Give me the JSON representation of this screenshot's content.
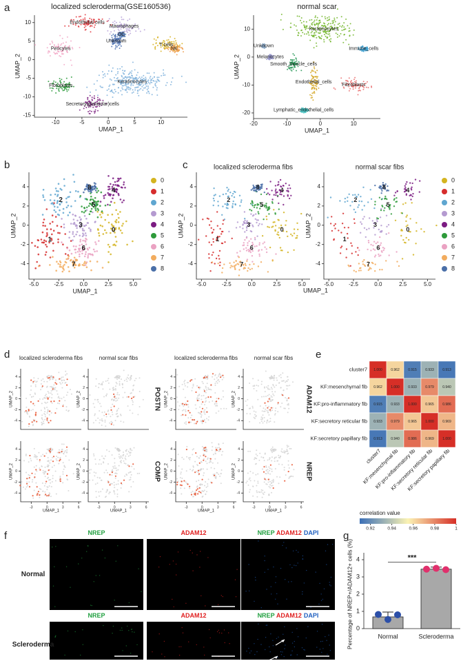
{
  "chart_data": [
    {
      "type": "umap",
      "panel": "a",
      "title": "localized scleroderma(GSE160536)",
      "xlabel": "UMAP_1",
      "ylabel": "UMAP_2",
      "xlim": [
        -14,
        15
      ],
      "ylim": [
        -15.5,
        12
      ],
      "xticks": [
        -10,
        -5,
        0,
        5,
        10
      ],
      "yticks": [
        -15,
        -10,
        -5,
        0,
        5,
        10
      ],
      "series": [
        {
          "name": "Endothelial cells",
          "color": "#e0343a"
        },
        {
          "name": "Macrophages",
          "color": "#b9a3d9"
        },
        {
          "name": "DC",
          "color": "#5a7fb8"
        },
        {
          "name": "Unknown",
          "color": "#4a6fb0"
        },
        {
          "name": "T cells",
          "color": "#d8b21e"
        },
        {
          "name": "NK",
          "color": "#f0a050"
        },
        {
          "name": "Pericytes",
          "color": "#f2a6c6"
        },
        {
          "name": "Fibroblasts",
          "color": "#2a9a3a"
        },
        {
          "name": "Keratinocytes",
          "color": "#7fb2dc"
        },
        {
          "name": "Secretory(glandular)cells",
          "color": "#7b2080"
        }
      ]
    },
    {
      "type": "umap",
      "title": "normal scar",
      "xlabel": "UMAP_1",
      "ylabel": "UMAP_2",
      "xlim": [
        -20,
        18
      ],
      "ylim": [
        -22,
        15
      ],
      "xticks": [
        -20,
        -10,
        0,
        10
      ],
      "yticks": [
        -20,
        -10,
        0,
        10
      ],
      "series": [
        {
          "name": "Keratinocytes",
          "color": "#72b52a"
        },
        {
          "name": "Unknown",
          "color": "#8aa8c8"
        },
        {
          "name": "Immune_cells",
          "color": "#3fa0d0"
        },
        {
          "name": "Melanocytes",
          "color": "#9a9ad0"
        },
        {
          "name": "Smooth_muscle_cells",
          "color": "#2a9a5a"
        },
        {
          "name": "Endothelial_cells",
          "color": "#d4a520"
        },
        {
          "name": "Fibroblasts",
          "color": "#ea7070"
        },
        {
          "name": "Lymphatic_endothelial_cells",
          "color": "#40c0c0"
        }
      ]
    },
    {
      "type": "cluster_umap",
      "panel": "b",
      "xlabel": "UMAP_1",
      "ylabel": "UMAP_2",
      "xlim": [
        -5.5,
        5.8
      ],
      "ylim": [
        -5.6,
        5.5
      ],
      "xticks": [
        {
          "value": -5,
          "label": "-5.0"
        },
        {
          "value": -2.5,
          "label": "-2.5"
        },
        {
          "value": 0,
          "label": "0.0"
        },
        {
          "value": 2.5,
          "label": "2.5"
        },
        {
          "value": 5,
          "label": "5.0"
        }
      ],
      "yticks": [
        -4,
        -2,
        0,
        2,
        4
      ],
      "series": [
        {
          "name": "0",
          "color": "#d4b420"
        },
        {
          "name": "1",
          "color": "#d62d2d"
        },
        {
          "name": "2",
          "color": "#5fa6d0"
        },
        {
          "name": "3",
          "color": "#b49ad0"
        },
        {
          "name": "4",
          "color": "#7b1c82"
        },
        {
          "name": "5",
          "color": "#2e9a3a"
        },
        {
          "name": "6",
          "color": "#eaa2c2"
        },
        {
          "name": "7",
          "color": "#f2ac5e"
        },
        {
          "name": "8",
          "color": "#4a6fa8"
        }
      ]
    },
    {
      "type": "split_umap",
      "panel": "c",
      "titles": [
        "localized scleroderma fibs",
        "normal scar fibs"
      ],
      "xlabel": "UMAP_1",
      "ylabel": "UMAP_2",
      "xlim": [
        -5.5,
        5.8
      ],
      "ylim": [
        -5.6,
        5.5
      ],
      "xticks": [
        {
          "value": -5,
          "label": "-5.0"
        },
        {
          "value": -2.5,
          "label": "-2.5"
        },
        {
          "value": 0,
          "label": "0.0"
        },
        {
          "value": 2.5,
          "label": "2.5"
        },
        {
          "value": 5,
          "label": "5.0"
        }
      ],
      "yticks": [
        -4,
        -2,
        0,
        2,
        4
      ],
      "series": [
        {
          "name": "0",
          "color": "#d4b420"
        },
        {
          "name": "1",
          "color": "#d62d2d"
        },
        {
          "name": "2",
          "color": "#5fa6d0"
        },
        {
          "name": "3",
          "color": "#b49ad0"
        },
        {
          "name": "4",
          "color": "#7b1c82"
        },
        {
          "name": "5",
          "color": "#2e9a3a"
        },
        {
          "name": "6",
          "color": "#eaa2c2"
        },
        {
          "name": "7",
          "color": "#f2ac5e"
        },
        {
          "name": "8",
          "color": "#4a6fa8"
        }
      ]
    },
    {
      "type": "feature_umap",
      "panel": "d",
      "column_titles": [
        "localized scleroderma fibs",
        "normal scar fibs",
        "localized scleroderma fibs",
        "normal scar fibs"
      ],
      "genes": [
        [
          "POSTN",
          "COMP"
        ],
        [
          "ADAM12",
          "NREP"
        ]
      ],
      "xlabel": "UMAP_1",
      "ylabel": "UMAP_2",
      "xlim": [
        -5,
        6.5
      ],
      "ylim": [
        -5.6,
        5.5
      ],
      "xticks": [
        -3,
        0,
        3,
        6
      ],
      "yticks": [
        -4,
        -2,
        0,
        2,
        4
      ],
      "colors": {
        "low": "#d3d3d3",
        "high": "#e8502a"
      }
    },
    {
      "type": "heatmap",
      "panel": "e",
      "rows": [
        "cluster7",
        "KF:mesenchymal fib",
        "KF:pro-inflammatory fib",
        "KF:secretory reticular fib",
        "KF:secretory papillary fib"
      ],
      "columns": [
        "cluster7",
        "KF:mesenchymal fib",
        "KF:pro-inflammatory fib",
        "KF:secretory reticular fib",
        "KF:secretory papillary fib"
      ],
      "values": [
        [
          1.0,
          0.962,
          0.915,
          0.933,
          0.913
        ],
        [
          0.962,
          1.0,
          0.933,
          0.979,
          0.94
        ],
        [
          0.915,
          0.933,
          1.0,
          0.965,
          0.986
        ],
        [
          0.933,
          0.979,
          0.965,
          1.0,
          0.969
        ],
        [
          0.913,
          0.94,
          0.986,
          0.969,
          1.0
        ]
      ],
      "value_labels": [
        [
          "1.000",
          "0.962",
          "0.915",
          "0.933",
          "0.913"
        ],
        [
          "0.962",
          "1.000",
          "0.933",
          "0.979",
          "0.940"
        ],
        [
          "0.915",
          "0.933",
          "1.000",
          "0.965",
          "0.986"
        ],
        [
          "0.933",
          "0.979",
          "0.965",
          "1.000",
          "0.969"
        ],
        [
          "0.913",
          "0.940",
          "0.986",
          "0.969",
          "1.000"
        ]
      ],
      "colorbar_label": "correlation value",
      "clim": [
        0.91,
        1.0
      ],
      "cticks": [
        0.92,
        0.94,
        0.96,
        0.98,
        1
      ],
      "colors": [
        "#3b6fb6",
        "#fbf3b4",
        "#d62f27"
      ]
    },
    {
      "type": "image_grid",
      "panel": "f",
      "channels": [
        {
          "name": "NREP",
          "color": "#22a040"
        },
        {
          "name": "ADAM12",
          "color": "#e02020"
        },
        {
          "name": "DAPI",
          "color": "#2060c0"
        }
      ],
      "rows": [
        "Normal",
        "Scleroderma"
      ]
    },
    {
      "type": "bar",
      "panel": "g",
      "categories": [
        "Normal",
        "Scleroderma"
      ],
      "values": [
        0.68,
        3.45
      ],
      "errors": [
        0.28,
        0.12
      ],
      "points": [
        [
          0.82,
          0.53,
          0.8
        ],
        [
          3.45,
          3.5,
          3.42
        ]
      ],
      "color": "#a8a8a8",
      "point_colors": [
        "#2c4fa8",
        "#e0306c"
      ],
      "ylabel": "Percentage of NREP+/ADAM12+ cells (%)",
      "annotation": "***",
      "ylim": [
        0,
        4
      ],
      "yticks": [
        0,
        1,
        2,
        3,
        4
      ]
    }
  ]
}
